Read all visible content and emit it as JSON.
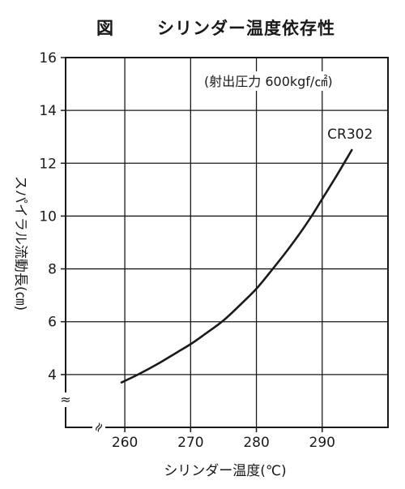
{
  "chart_data": {
    "type": "line",
    "title": {
      "prefix": "図",
      "text": "シリンダー温度依存性"
    },
    "xlabel": "シリンダー温度(℃)",
    "ylabel": "スパイラル流動長(㎝)",
    "annotation": "(射出圧力 600kgf/㎠)",
    "xlim": [
      251,
      300
    ],
    "ylim": [
      2,
      16
    ],
    "x_ticks": [
      260,
      270,
      280,
      290
    ],
    "y_ticks": [
      4,
      6,
      8,
      10,
      12,
      14,
      16
    ],
    "grid": true,
    "axis_break_marks": {
      "x": "≈",
      "y": "≈"
    },
    "series": [
      {
        "name": "CR302",
        "x": [
          259.5,
          262,
          265,
          268,
          270,
          272,
          275,
          278,
          280,
          282,
          285,
          288,
          290,
          292,
          294.5
        ],
        "y": [
          3.7,
          4.0,
          4.4,
          4.85,
          5.15,
          5.5,
          6.05,
          6.75,
          7.25,
          7.85,
          8.8,
          9.85,
          10.65,
          11.45,
          12.5
        ]
      }
    ]
  }
}
